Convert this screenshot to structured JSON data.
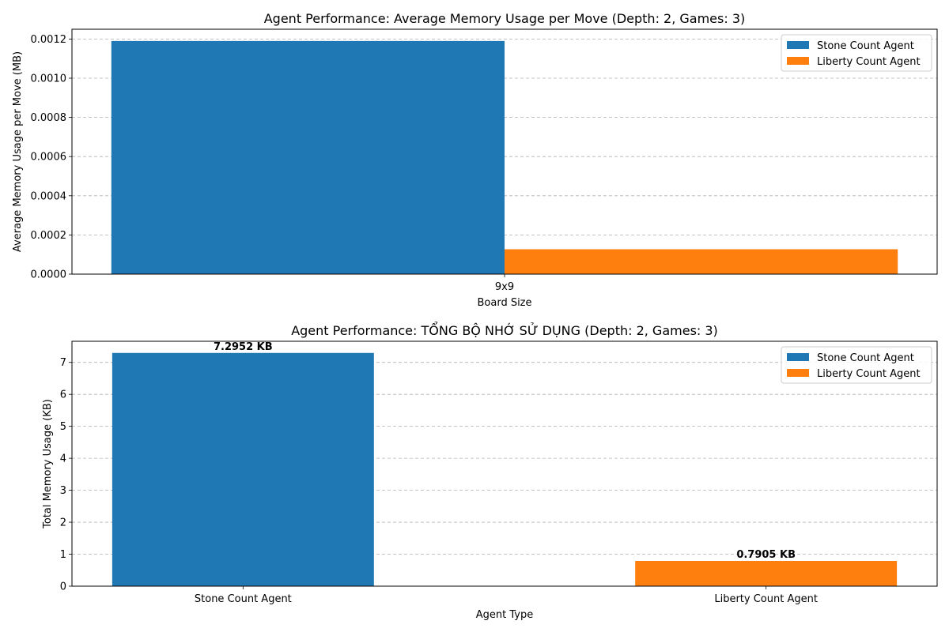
{
  "chart_data": [
    {
      "type": "bar",
      "title": "Agent Performance: Average Memory Usage per Move (Depth: 2, Games: 3)",
      "xlabel": "Board Size",
      "ylabel": "Average Memory Usage per Move (MB)",
      "categories": [
        "9x9"
      ],
      "series": [
        {
          "name": "Stone Count Agent",
          "values": [
            0.00119
          ],
          "color": "#1f77b4"
        },
        {
          "name": "Liberty Count Agent",
          "values": [
            0.000127
          ],
          "color": "#ff7f0e"
        }
      ],
      "ylim": [
        0,
        0.00125
      ],
      "yticks": [
        0,
        0.0002,
        0.0004,
        0.0006,
        0.0008,
        0.001,
        0.0012
      ],
      "ytick_labels": [
        "0.0000",
        "0.0002",
        "0.0004",
        "0.0006",
        "0.0008",
        "0.0010",
        "0.0012"
      ],
      "grid": "y-dashed",
      "legend": "top-right"
    },
    {
      "type": "bar",
      "title": "Agent Performance: TỔNG BỘ NHỚ SỬ DỤNG (Depth: 2, Games: 3)",
      "xlabel": "Agent Type",
      "ylabel": "Total Memory Usage (KB)",
      "categories": [
        "Stone Count Agent",
        "Liberty Count Agent"
      ],
      "values": [
        7.2952,
        0.7905
      ],
      "data_labels": [
        "7.2952 KB",
        "0.7905 KB"
      ],
      "colors": [
        "#1f77b4",
        "#ff7f0e"
      ],
      "legend_entries": [
        {
          "name": "Stone Count Agent",
          "color": "#1f77b4"
        },
        {
          "name": "Liberty Count Agent",
          "color": "#ff7f0e"
        }
      ],
      "ylim": [
        0,
        7.66
      ],
      "yticks": [
        0,
        1,
        2,
        3,
        4,
        5,
        6,
        7
      ],
      "ytick_labels": [
        "0",
        "1",
        "2",
        "3",
        "4",
        "5",
        "6",
        "7"
      ],
      "grid": "y-dashed",
      "legend": "top-right"
    }
  ]
}
